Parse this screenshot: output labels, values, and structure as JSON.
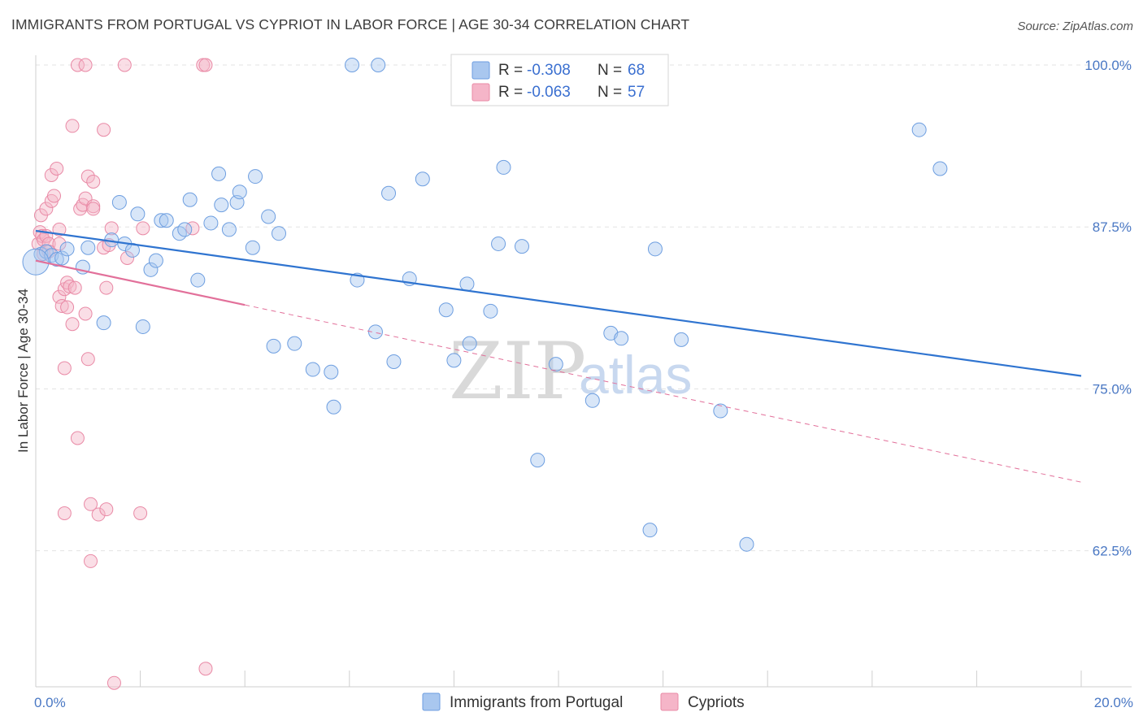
{
  "header": {
    "title": "IMMIGRANTS FROM PORTUGAL VS CYPRIOT IN LABOR FORCE | AGE 30-34 CORRELATION CHART",
    "source": "Source: ZipAtlas.com"
  },
  "watermark": {
    "zip": "ZIP",
    "atlas": "atlas"
  },
  "colors": {
    "blue_fill": "#a9c7ef",
    "blue_stroke": "#6d9ee0",
    "blue_line": "#2f74d0",
    "pink_fill": "#f5b5c8",
    "pink_stroke": "#e98aa6",
    "pink_line": "#e2709a",
    "grid": "#e3e3e3",
    "tick_label": "#4a78c4"
  },
  "legend": {
    "rows": [
      {
        "r_label": "R =",
        "r_value": "-0.308",
        "n_label": "N =",
        "n_value": "68"
      },
      {
        "r_label": "R =",
        "r_value": "-0.063",
        "n_label": "N =",
        "n_value": "57"
      }
    ]
  },
  "chart_data": {
    "type": "scatter",
    "title": "IMMIGRANTS FROM PORTUGAL VS CYPRIOT IN LABOR FORCE | AGE 30-34 CORRELATION CHART",
    "xlabel": "",
    "ylabel": "In Labor Force | Age 30-34",
    "xlim": [
      0,
      20
    ],
    "ylim": [
      52.5,
      101.5
    ],
    "x_tick_labels": [
      "0.0%",
      "20.0%"
    ],
    "y_ticks": [
      62.5,
      75.0,
      87.5,
      100.0
    ],
    "y_tick_labels": [
      "62.5%",
      "75.0%",
      "87.5%",
      "100.0%"
    ],
    "grid": true,
    "legend_position": "top-center",
    "series": [
      {
        "name": "Immigrants from Portugal",
        "color": "#a9c7ef",
        "stats": {
          "R": -0.308,
          "N": 68
        },
        "trend": {
          "x": [
            0,
            20
          ],
          "y": [
            87.2,
            76.0
          ],
          "style": "solid"
        },
        "points": [
          [
            0.1,
            85.4
          ],
          [
            0.2,
            85.6
          ],
          [
            0.3,
            85.3
          ],
          [
            0.4,
            85.0
          ],
          [
            0.5,
            85.1
          ],
          [
            0.6,
            85.8
          ],
          [
            0.9,
            84.4
          ],
          [
            1.0,
            85.9
          ],
          [
            1.3,
            80.1
          ],
          [
            1.45,
            86.5
          ],
          [
            1.6,
            89.4
          ],
          [
            1.7,
            86.2
          ],
          [
            1.85,
            85.7
          ],
          [
            1.95,
            88.5
          ],
          [
            2.05,
            79.8
          ],
          [
            2.2,
            84.2
          ],
          [
            2.3,
            84.9
          ],
          [
            2.4,
            88.0
          ],
          [
            2.5,
            88.0
          ],
          [
            2.75,
            87.0
          ],
          [
            2.85,
            87.3
          ],
          [
            2.95,
            89.6
          ],
          [
            3.1,
            83.4
          ],
          [
            3.35,
            87.8
          ],
          [
            3.5,
            91.6
          ],
          [
            3.55,
            89.2
          ],
          [
            3.7,
            87.3
          ],
          [
            3.85,
            89.4
          ],
          [
            3.9,
            90.2
          ],
          [
            4.15,
            85.9
          ],
          [
            4.2,
            91.4
          ],
          [
            4.45,
            88.3
          ],
          [
            4.55,
            78.3
          ],
          [
            4.65,
            87.0
          ],
          [
            4.95,
            78.5
          ],
          [
            5.3,
            76.5
          ],
          [
            5.65,
            76.3
          ],
          [
            5.7,
            73.6
          ],
          [
            6.05,
            100.0
          ],
          [
            6.15,
            83.4
          ],
          [
            6.5,
            79.4
          ],
          [
            6.55,
            100.0
          ],
          [
            6.75,
            90.1
          ],
          [
            6.85,
            77.1
          ],
          [
            7.15,
            83.5
          ],
          [
            7.4,
            91.2
          ],
          [
            7.85,
            81.1
          ],
          [
            8.0,
            77.2
          ],
          [
            8.25,
            83.1
          ],
          [
            8.3,
            78.5
          ],
          [
            8.7,
            81.0
          ],
          [
            8.85,
            86.2
          ],
          [
            8.95,
            92.1
          ],
          [
            9.3,
            86.0
          ],
          [
            9.6,
            69.5
          ],
          [
            9.95,
            76.9
          ],
          [
            10.65,
            74.1
          ],
          [
            11.0,
            79.3
          ],
          [
            11.2,
            78.9
          ],
          [
            11.35,
            100.0
          ],
          [
            11.75,
            64.1
          ],
          [
            11.85,
            85.8
          ],
          [
            12.35,
            78.8
          ],
          [
            13.1,
            73.3
          ],
          [
            13.6,
            63.0
          ],
          [
            16.9,
            95.0
          ],
          [
            17.3,
            92.0
          ],
          [
            0.0,
            84.8
          ]
        ]
      },
      {
        "name": "Cypriots",
        "color": "#f5b5c8",
        "stats": {
          "R": -0.063,
          "N": 57
        },
        "trend": {
          "x": [
            0,
            20
          ],
          "y": [
            84.9,
            67.8
          ],
          "solid_until_x": 4.0,
          "style": "solid-then-dashed"
        },
        "points": [
          [
            0.05,
            86.2
          ],
          [
            0.08,
            87.1
          ],
          [
            0.1,
            88.4
          ],
          [
            0.12,
            86.8
          ],
          [
            0.15,
            85.4
          ],
          [
            0.15,
            86.5
          ],
          [
            0.2,
            88.9
          ],
          [
            0.2,
            86.8
          ],
          [
            0.25,
            86.2
          ],
          [
            0.3,
            91.5
          ],
          [
            0.3,
            89.5
          ],
          [
            0.35,
            89.9
          ],
          [
            0.4,
            92.0
          ],
          [
            0.45,
            87.3
          ],
          [
            0.45,
            82.1
          ],
          [
            0.5,
            81.4
          ],
          [
            0.55,
            82.7
          ],
          [
            0.55,
            76.6
          ],
          [
            0.6,
            83.2
          ],
          [
            0.65,
            82.9
          ],
          [
            0.7,
            95.3
          ],
          [
            0.7,
            80.0
          ],
          [
            0.75,
            82.8
          ],
          [
            0.8,
            100.0
          ],
          [
            0.8,
            71.2
          ],
          [
            0.85,
            88.9
          ],
          [
            0.9,
            89.2
          ],
          [
            0.95,
            100.0
          ],
          [
            0.95,
            89.7
          ],
          [
            0.95,
            80.8
          ],
          [
            1.0,
            91.4
          ],
          [
            1.0,
            77.3
          ],
          [
            1.05,
            66.1
          ],
          [
            1.05,
            61.7
          ],
          [
            1.1,
            89.1
          ],
          [
            1.1,
            91.0
          ],
          [
            1.1,
            88.9
          ],
          [
            1.2,
            65.3
          ],
          [
            1.3,
            95.0
          ],
          [
            1.3,
            85.9
          ],
          [
            1.35,
            82.8
          ],
          [
            1.35,
            65.7
          ],
          [
            1.4,
            86.1
          ],
          [
            1.45,
            87.4
          ],
          [
            1.5,
            52.3
          ],
          [
            1.7,
            100.0
          ],
          [
            1.75,
            85.1
          ],
          [
            2.0,
            65.4
          ],
          [
            0.55,
            65.4
          ],
          [
            2.05,
            87.4
          ],
          [
            3.0,
            87.4
          ],
          [
            3.2,
            100.0
          ],
          [
            3.25,
            100.0
          ],
          [
            3.25,
            53.4
          ],
          [
            0.45,
            86.2
          ],
          [
            0.25,
            85.6
          ],
          [
            0.6,
            81.3
          ]
        ]
      }
    ]
  }
}
